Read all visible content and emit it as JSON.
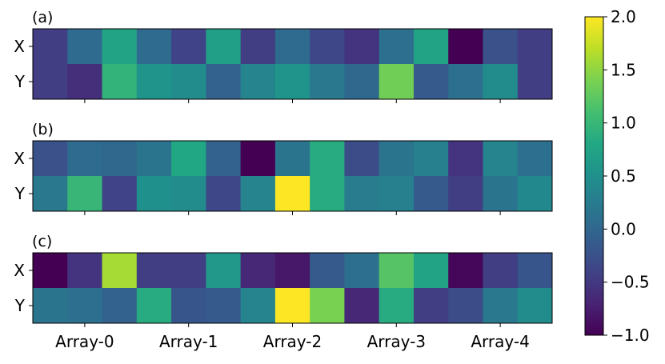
{
  "chart_data": {
    "type": "heatmap",
    "colormap": "viridis",
    "colorbar": {
      "vmin": -1.0,
      "vmax": 2.0,
      "ticks": [
        2.0,
        1.5,
        1.0,
        0.5,
        0.0,
        -0.5,
        -1.0
      ],
      "tick_labels": [
        "2.0",
        "1.5",
        "1.0",
        "0.5",
        "0.0",
        "−0.5",
        "−1.0"
      ]
    },
    "rows": [
      "X",
      "Y"
    ],
    "xticklabels": [
      "Array-0",
      "Array-1",
      "Array-2",
      "Array-3",
      "Array-4"
    ],
    "panels": [
      {
        "label": "(a)",
        "values": [
          [
            -0.45,
            0.05,
            0.75,
            0.05,
            -0.4,
            0.7,
            -0.45,
            0.05,
            -0.35,
            -0.55,
            0.1,
            0.75,
            -1.0,
            -0.25,
            -0.45
          ],
          [
            -0.45,
            -0.6,
            0.95,
            0.55,
            0.45,
            -0.05,
            0.35,
            0.55,
            0.2,
            0.0,
            1.35,
            -0.15,
            0.1,
            0.45,
            -0.45
          ]
        ]
      },
      {
        "label": "(b)",
        "values": [
          [
            -0.25,
            0.05,
            0.0,
            0.15,
            0.8,
            -0.05,
            -1.0,
            0.15,
            0.85,
            -0.3,
            0.15,
            0.3,
            -0.55,
            0.35,
            0.1
          ],
          [
            0.2,
            1.0,
            -0.4,
            0.5,
            0.45,
            -0.35,
            0.35,
            2.0,
            0.85,
            0.25,
            0.3,
            -0.15,
            -0.45,
            0.15,
            0.4
          ]
        ]
      },
      {
        "label": "(c)",
        "values": [
          [
            -1.0,
            -0.55,
            1.6,
            -0.45,
            -0.45,
            0.6,
            -0.65,
            -0.8,
            -0.15,
            0.1,
            1.2,
            0.75,
            -0.95,
            -0.45,
            -0.2
          ],
          [
            0.15,
            0.1,
            -0.05,
            0.85,
            -0.2,
            -0.15,
            0.35,
            2.0,
            1.4,
            -0.65,
            0.85,
            -0.45,
            -0.3,
            0.2,
            0.45
          ]
        ]
      }
    ]
  }
}
